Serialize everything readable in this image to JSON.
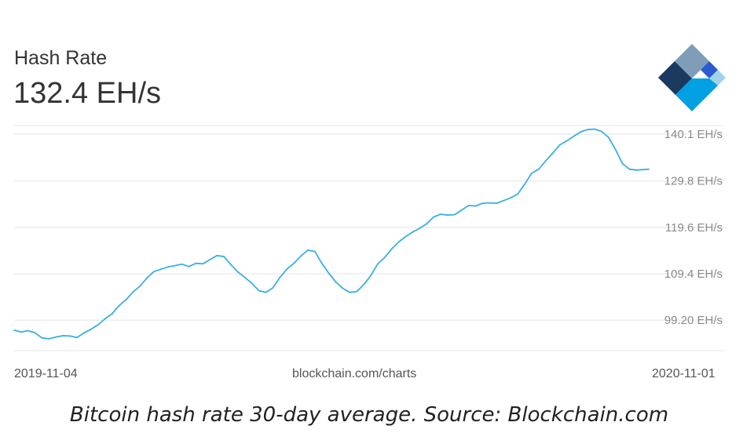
{
  "header": {
    "title": "Hash Rate",
    "current_value": "132.4 EH/s"
  },
  "logo": {
    "icon": "blockchain-diamond-icon",
    "colors": [
      "#7f9db9",
      "#1a3a5f",
      "#2b5bd1",
      "#00a0e3",
      "#9fd3ef"
    ]
  },
  "footer": {
    "start_date": "2019-11-04",
    "source": "blockchain.com/charts",
    "end_date": "2020-11-01"
  },
  "caption": "Bitcoin hash rate 30-day average. Source: Blockchain.com",
  "chart_data": {
    "type": "line",
    "title": "Hash Rate",
    "xlabel": "",
    "ylabel": "",
    "x_range": [
      "2019-11-04",
      "2020-11-01"
    ],
    "x_tick_labels": [
      "2019-11-04",
      "2020-11-01"
    ],
    "y_tick_values": [
      99.2,
      109.4,
      119.6,
      129.8,
      140.1
    ],
    "y_tick_labels": [
      "99.20 EH/s",
      "109.4 EH/s",
      "119.6 EH/s",
      "129.8 EH/s",
      "140.1 EH/s"
    ],
    "ylim": [
      92.5,
      142.0
    ],
    "grid": true,
    "line_color": "#3ab0df",
    "series": [
      {
        "x": [
          "2019-11-04",
          "2019-11-08",
          "2019-11-12",
          "2019-11-16",
          "2019-11-20",
          "2019-11-24",
          "2019-11-28",
          "2019-12-02",
          "2019-12-06",
          "2019-12-10",
          "2019-12-14",
          "2019-12-18",
          "2019-12-22",
          "2019-12-26",
          "2019-12-30",
          "2020-01-03",
          "2020-01-07",
          "2020-01-11",
          "2020-01-15",
          "2020-01-19",
          "2020-01-23",
          "2020-01-27",
          "2020-01-31",
          "2020-02-04",
          "2020-02-08",
          "2020-02-12",
          "2020-02-16",
          "2020-02-20",
          "2020-02-24",
          "2020-02-28",
          "2020-03-03",
          "2020-03-07",
          "2020-03-11",
          "2020-03-15",
          "2020-03-19",
          "2020-03-23",
          "2020-03-27",
          "2020-03-31",
          "2020-04-04",
          "2020-04-08",
          "2020-04-12",
          "2020-04-16",
          "2020-04-20",
          "2020-04-24",
          "2020-04-28",
          "2020-05-02",
          "2020-05-06",
          "2020-05-10",
          "2020-05-14",
          "2020-05-18",
          "2020-05-22",
          "2020-05-26",
          "2020-05-30",
          "2020-06-03",
          "2020-06-07",
          "2020-06-11",
          "2020-06-15",
          "2020-06-19",
          "2020-06-23",
          "2020-06-27",
          "2020-07-01",
          "2020-07-05",
          "2020-07-09",
          "2020-07-13",
          "2020-07-17",
          "2020-07-21",
          "2020-07-25",
          "2020-07-29",
          "2020-08-02",
          "2020-08-06",
          "2020-08-10",
          "2020-08-14",
          "2020-08-18",
          "2020-08-22",
          "2020-08-26",
          "2020-08-30",
          "2020-09-03",
          "2020-09-07",
          "2020-09-11",
          "2020-09-15",
          "2020-09-19",
          "2020-09-23",
          "2020-09-27",
          "2020-10-01",
          "2020-10-05",
          "2020-10-09",
          "2020-10-13",
          "2020-10-17",
          "2020-10-21",
          "2020-10-25",
          "2020-10-29",
          "2020-11-01"
        ],
        "values": [
          97.0,
          96.6,
          96.9,
          96.4,
          95.3,
          95.1,
          95.5,
          95.8,
          95.7,
          95.4,
          96.4,
          97.2,
          98.2,
          99.5,
          100.6,
          102.4,
          103.7,
          105.4,
          106.7,
          108.5,
          109.9,
          110.4,
          110.9,
          111.2,
          111.5,
          111.0,
          111.7,
          111.6,
          112.5,
          113.4,
          113.2,
          111.4,
          109.8,
          108.6,
          107.3,
          105.7,
          105.3,
          106.3,
          108.6,
          110.4,
          111.7,
          113.3,
          114.6,
          114.3,
          111.7,
          109.5,
          107.6,
          106.2,
          105.3,
          105.5,
          107.0,
          109.0,
          111.6,
          113.0,
          114.9,
          116.4,
          117.6,
          118.6,
          119.4,
          120.4,
          121.9,
          122.5,
          122.3,
          122.4,
          123.4,
          124.4,
          124.3,
          124.9,
          125.0,
          124.9,
          125.5,
          126.1,
          126.9,
          129.1,
          131.5,
          132.4,
          134.2,
          135.9,
          137.7,
          138.6,
          139.6,
          140.6,
          141.1,
          141.2,
          140.7,
          139.4,
          136.7,
          133.6,
          132.4,
          132.2,
          132.3,
          132.4
        ]
      }
    ]
  }
}
